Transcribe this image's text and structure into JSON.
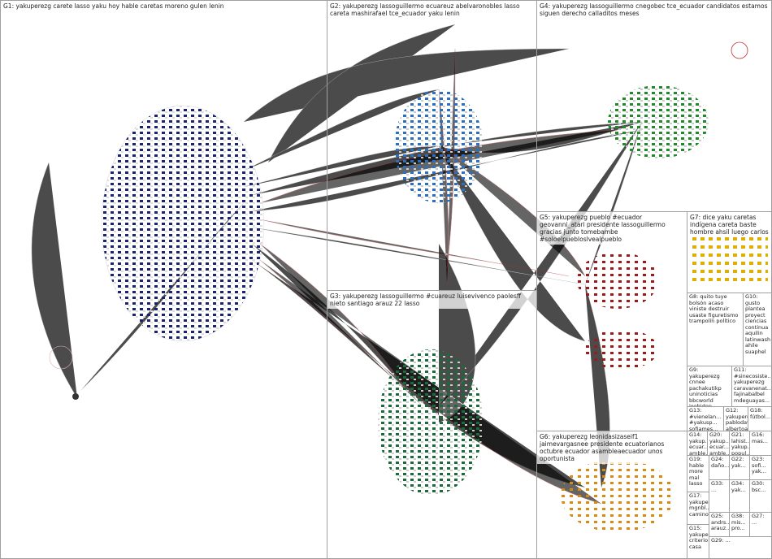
{
  "groups": [
    {
      "label": "G1: yakuperezg carete lasso yaku hoy hable caretas moreno gulen lenin"
    },
    {
      "label": "G2: yakuperezg lassoguillermo ecuareuz abelvaronobles lasso careta mashirafael tce_ecuador yaku lenin"
    },
    {
      "label": "G3: yakuperezg lassoguillermo #cuareuz luisevivenco paolesff nieto santiago arauz 22 lasso"
    },
    {
      "label": "G4: yakuperezg lassoguillermo cnegobec tce_ecuador candidatos estamos siguen derecho calladitos meses"
    },
    {
      "label": "G5: yakuperezg pueblo #ecuador geovanni_atari presidente lassoguillermo gracias junto tomebambe #soloelpuebloslvealpueblo"
    },
    {
      "label": "G6: yakuperezg leonidasizaseif1 jaimevargasnee presidente ecuatorianos octubre ecuador asambleaecuador unos oportunista"
    },
    {
      "label": "G7: dice yaku caretas indígena careta baste hombre ahsil luego carlos"
    },
    {
      "label": "G8: quito tuye bolsón acaso viniste destruir usaste figuretismo trampolín político"
    },
    {
      "label": "G9: yakuperezg cnnee pachakutikp uninoticias bbcworld joebiden gran..."
    },
    {
      "label": "G10: gusto plantea proyect ciencias continua aquilin latinwash ahile suaphel"
    },
    {
      "label": "G11: #sinecosiste... yakuperezg caravanenat... fajinabalbel mdeguayas..."
    },
    {
      "label": "G12: yakupere... pablodav... albertoac... ecuareuz lassoguill..."
    },
    {
      "label": "G13: #vienelan... #yakusp... sofiames... #pachaku..."
    },
    {
      "label": "G14: yakup... ecuar... amble..."
    },
    {
      "label": "G15: yakupe... criterio casa"
    },
    {
      "label": "G16: mas..."
    },
    {
      "label": "G17: yakupere... mgnbl... camino"
    },
    {
      "label": "G18: fútbol..."
    },
    {
      "label": "G19: hable more mal lasso"
    },
    {
      "label": "G20: yakup... ecuar... amble..."
    },
    {
      "label": "G21: lahist... yakup... popul..."
    },
    {
      "label": "G22: yak..."
    },
    {
      "label": "G23: sofi... yak..."
    },
    {
      "label": "G24: daño..."
    },
    {
      "label": "G25: andrs... arauz..."
    },
    {
      "label": "G33: ..."
    },
    {
      "label": "G34: yak..."
    },
    {
      "label": "G30: bsc..."
    },
    {
      "label": "G38: mis... pro..."
    },
    {
      "label": "G27: ..."
    },
    {
      "label": "G29: ..."
    }
  ]
}
